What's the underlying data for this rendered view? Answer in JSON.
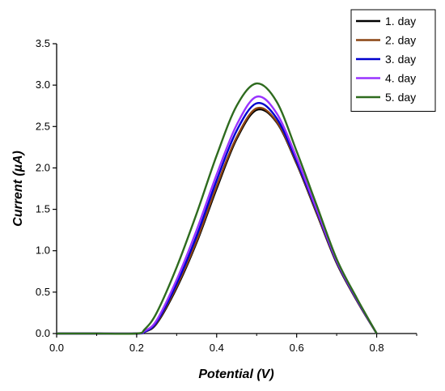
{
  "chart_data": {
    "type": "line",
    "title": "",
    "xlabel": "Potential (V)",
    "ylabel": "Current (µA)",
    "xlim": [
      0.0,
      0.9
    ],
    "ylim": [
      0.0,
      3.5
    ],
    "xticks": [
      "0.0",
      "0.2",
      "0.4",
      "0.6",
      "0.8"
    ],
    "yticks": [
      "0.0",
      "0.5",
      "1.0",
      "1.5",
      "2.0",
      "2.5",
      "3.0",
      "3.5"
    ],
    "grid": false,
    "legend_position": "top-right",
    "series": [
      {
        "name": "1. day",
        "color": "#000000",
        "x": [
          0.0,
          0.1,
          0.2,
          0.22,
          0.25,
          0.3,
          0.35,
          0.4,
          0.45,
          0.5,
          0.55,
          0.6,
          0.65,
          0.7,
          0.75,
          0.8
        ],
        "y": [
          0.0,
          0.0,
          0.0,
          0.02,
          0.12,
          0.55,
          1.1,
          1.75,
          2.35,
          2.7,
          2.55,
          2.05,
          1.45,
          0.85,
          0.4,
          0.0
        ]
      },
      {
        "name": "2. day",
        "color": "#8B4513",
        "x": [
          0.0,
          0.1,
          0.2,
          0.22,
          0.25,
          0.3,
          0.35,
          0.4,
          0.45,
          0.5,
          0.55,
          0.6,
          0.65,
          0.7,
          0.75,
          0.8
        ],
        "y": [
          0.0,
          0.0,
          0.0,
          0.02,
          0.13,
          0.57,
          1.12,
          1.78,
          2.37,
          2.72,
          2.56,
          2.06,
          1.46,
          0.86,
          0.4,
          0.0
        ]
      },
      {
        "name": "3. day",
        "color": "#0000CD",
        "x": [
          0.0,
          0.1,
          0.2,
          0.22,
          0.25,
          0.3,
          0.35,
          0.4,
          0.45,
          0.5,
          0.55,
          0.6,
          0.65,
          0.7,
          0.75,
          0.8
        ],
        "y": [
          0.0,
          0.0,
          0.0,
          0.02,
          0.14,
          0.6,
          1.18,
          1.85,
          2.45,
          2.78,
          2.6,
          2.08,
          1.48,
          0.87,
          0.41,
          0.0
        ]
      },
      {
        "name": "4. day",
        "color": "#9933FF",
        "x": [
          0.0,
          0.1,
          0.2,
          0.22,
          0.25,
          0.3,
          0.35,
          0.4,
          0.45,
          0.5,
          0.55,
          0.6,
          0.65,
          0.7,
          0.75,
          0.8
        ],
        "y": [
          0.0,
          0.0,
          0.0,
          0.03,
          0.16,
          0.65,
          1.25,
          1.92,
          2.52,
          2.86,
          2.66,
          2.12,
          1.5,
          0.88,
          0.42,
          0.0
        ]
      },
      {
        "name": "5. day",
        "color": "#2E6B1E",
        "x": [
          0.0,
          0.1,
          0.2,
          0.22,
          0.25,
          0.3,
          0.35,
          0.4,
          0.45,
          0.5,
          0.55,
          0.6,
          0.65,
          0.7,
          0.75,
          0.8
        ],
        "y": [
          0.0,
          0.0,
          0.0,
          0.05,
          0.25,
          0.8,
          1.45,
          2.15,
          2.75,
          3.02,
          2.8,
          2.2,
          1.55,
          0.9,
          0.43,
          0.0
        ]
      }
    ]
  }
}
